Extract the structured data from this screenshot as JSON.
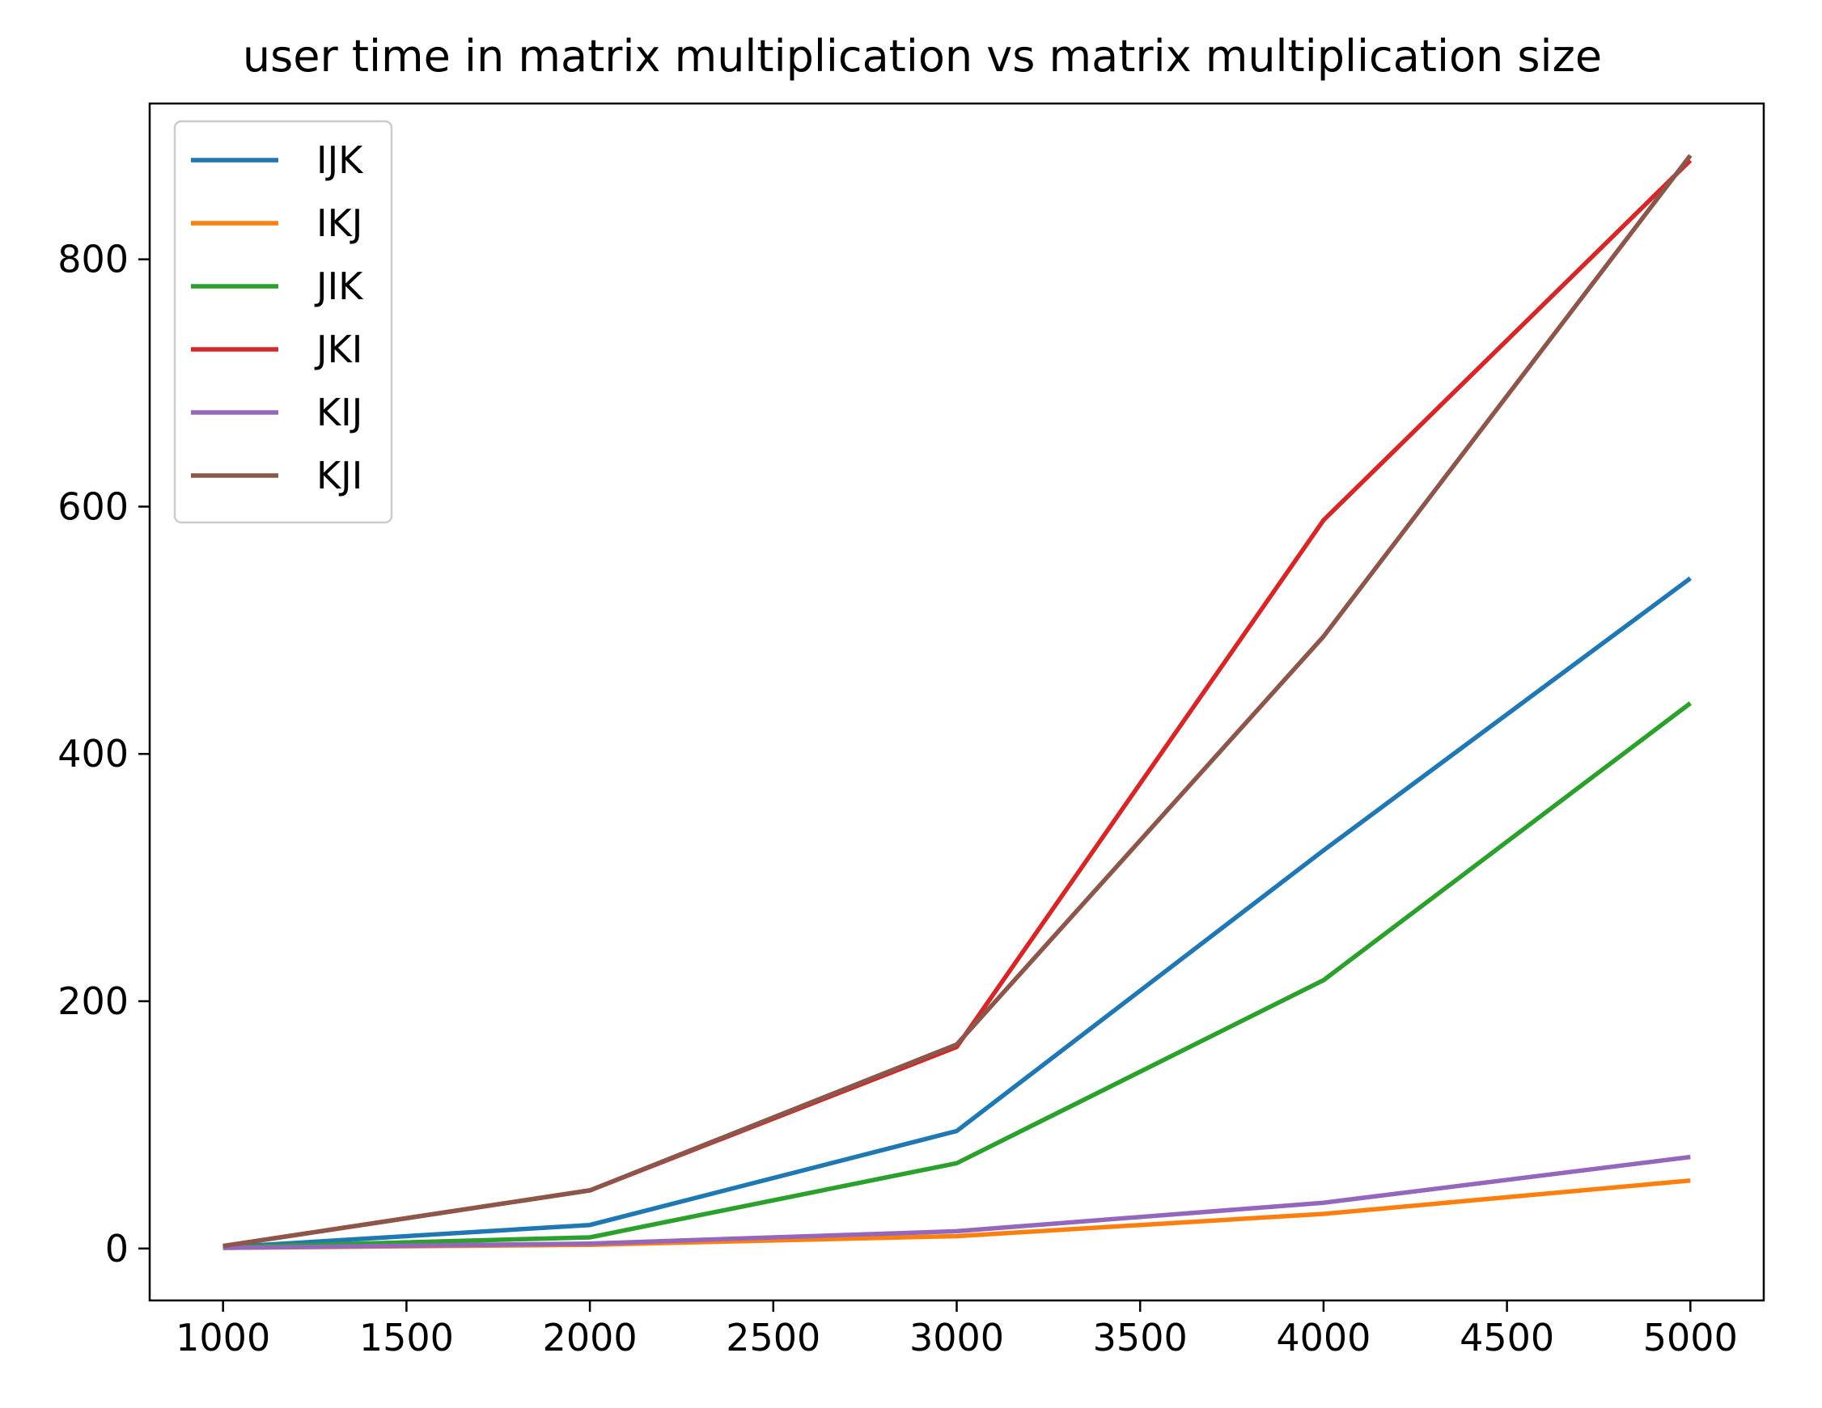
{
  "chart_data": {
    "type": "line",
    "title": "user time in matrix multiplication vs matrix multiplication size",
    "xlabel": "",
    "ylabel": "",
    "x": [
      1000,
      2000,
      3000,
      4000,
      5000
    ],
    "xlim": [
      800,
      5200
    ],
    "ylim": [
      -42,
      926
    ],
    "xticks": [
      1000,
      1500,
      2000,
      2500,
      3000,
      3500,
      4000,
      4500,
      5000
    ],
    "yticks": [
      0,
      200,
      400,
      600,
      800
    ],
    "grid": false,
    "legend_position": "top-left",
    "series": [
      {
        "name": "IJK",
        "color": "#1f77b4",
        "values": [
          1,
          19,
          95,
          322,
          542
        ]
      },
      {
        "name": "IKJ",
        "color": "#ff7f0e",
        "values": [
          0.5,
          3,
          10,
          28,
          55
        ]
      },
      {
        "name": "JIK",
        "color": "#2ca02c",
        "values": [
          1,
          9,
          69,
          217,
          441
        ]
      },
      {
        "name": "JKI",
        "color": "#d62728",
        "values": [
          2,
          47,
          163,
          589,
          880
        ]
      },
      {
        "name": "KIJ",
        "color": "#9467bd",
        "values": [
          0.5,
          4,
          14,
          37,
          74
        ]
      },
      {
        "name": "KJI",
        "color": "#8c564b",
        "values": [
          2,
          47,
          165,
          495,
          884
        ]
      }
    ]
  }
}
